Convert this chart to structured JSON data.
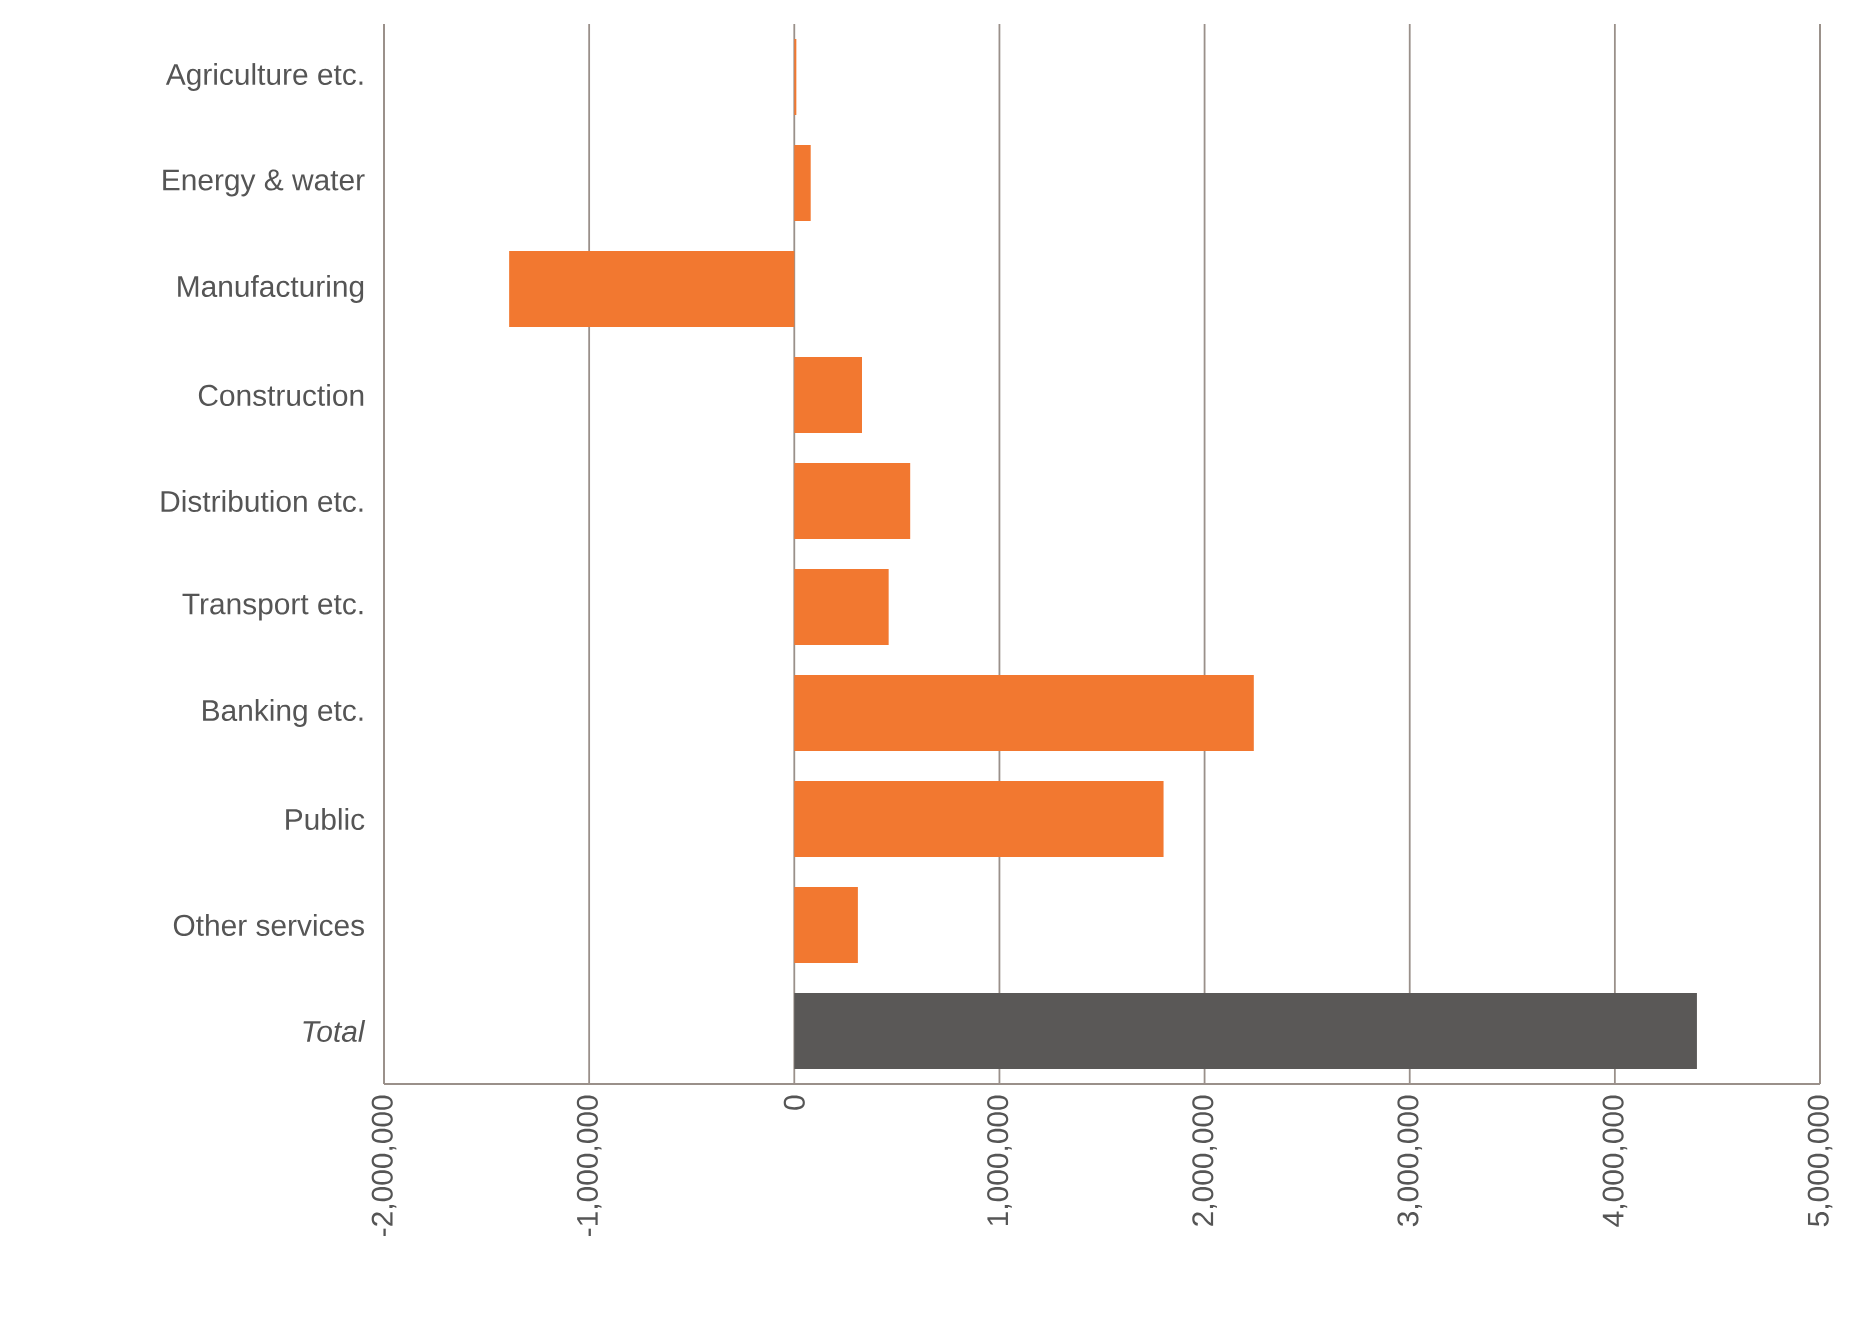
{
  "chart_data": {
    "type": "bar",
    "orientation": "horizontal",
    "categories": [
      "Agriculture etc.",
      "Energy & water",
      "Manufacturing",
      "Construction",
      "Distribution etc.",
      "Transport etc.",
      "Banking etc.",
      "Public",
      "Other services",
      "*Total*"
    ],
    "values": [
      10000,
      80000,
      -1390000,
      330000,
      565000,
      460000,
      2240000,
      1800000,
      310000,
      4400000
    ],
    "colors": [
      "#f27830",
      "#f27830",
      "#f27830",
      "#f27830",
      "#f27830",
      "#f27830",
      "#f27830",
      "#f27830",
      "#f27830",
      "#5a5857"
    ],
    "xlim": [
      -2000000,
      5000000
    ],
    "xticks": [
      {
        "value": -2000000,
        "label": "-2,000,000"
      },
      {
        "value": -1000000,
        "label": "-1,000,000"
      },
      {
        "value": 0,
        "label": "0"
      },
      {
        "value": 1000000,
        "label": "1,000,000"
      },
      {
        "value": 2000000,
        "label": "2,000,000"
      },
      {
        "value": 3000000,
        "label": "3,000,000"
      },
      {
        "value": 4000000,
        "label": "4,000,000"
      },
      {
        "value": 5000000,
        "label": "5,000,000"
      }
    ],
    "grid": "x"
  }
}
